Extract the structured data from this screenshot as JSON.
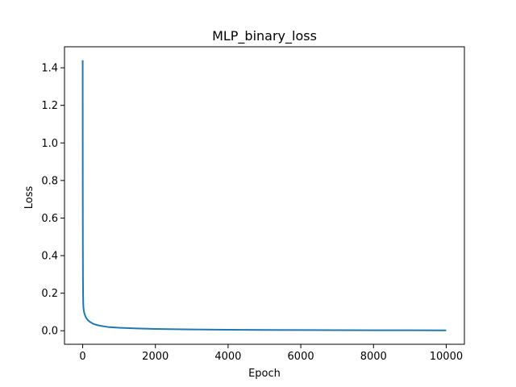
{
  "chart_data": {
    "type": "line",
    "title": "MLP_binary_loss",
    "xlabel": "Epoch",
    "ylabel": "Loss",
    "xlim": [
      -500,
      10500
    ],
    "ylim": [
      -0.072,
      1.512
    ],
    "grid": false,
    "x_ticks": [
      0,
      2000,
      4000,
      6000,
      8000,
      10000
    ],
    "x_tick_labels": [
      "0",
      "2000",
      "4000",
      "6000",
      "8000",
      "10000"
    ],
    "y_ticks": [
      0.0,
      0.2,
      0.4,
      0.6,
      0.8,
      1.0,
      1.2,
      1.4
    ],
    "y_tick_labels": [
      "0.0",
      "0.2",
      "0.4",
      "0.6",
      "0.8",
      "1.0",
      "1.2",
      "1.4"
    ],
    "series": [
      {
        "color": "#1f77b4",
        "x": [
          0,
          2,
          5,
          8,
          12,
          16,
          20,
          30,
          40,
          60,
          80,
          100,
          150,
          200,
          300,
          400,
          500,
          700,
          1000,
          1500,
          2000,
          3000,
          4000,
          5000,
          6000,
          7000,
          8000,
          9000,
          10000
        ],
        "y": [
          1.44,
          0.85,
          0.45,
          0.27,
          0.18,
          0.14,
          0.125,
          0.11,
          0.098,
          0.085,
          0.075,
          0.067,
          0.055,
          0.047,
          0.036,
          0.03,
          0.026,
          0.02,
          0.016,
          0.012,
          0.0095,
          0.0068,
          0.0053,
          0.0044,
          0.0037,
          0.0032,
          0.0028,
          0.0025,
          0.0023
        ]
      }
    ]
  }
}
